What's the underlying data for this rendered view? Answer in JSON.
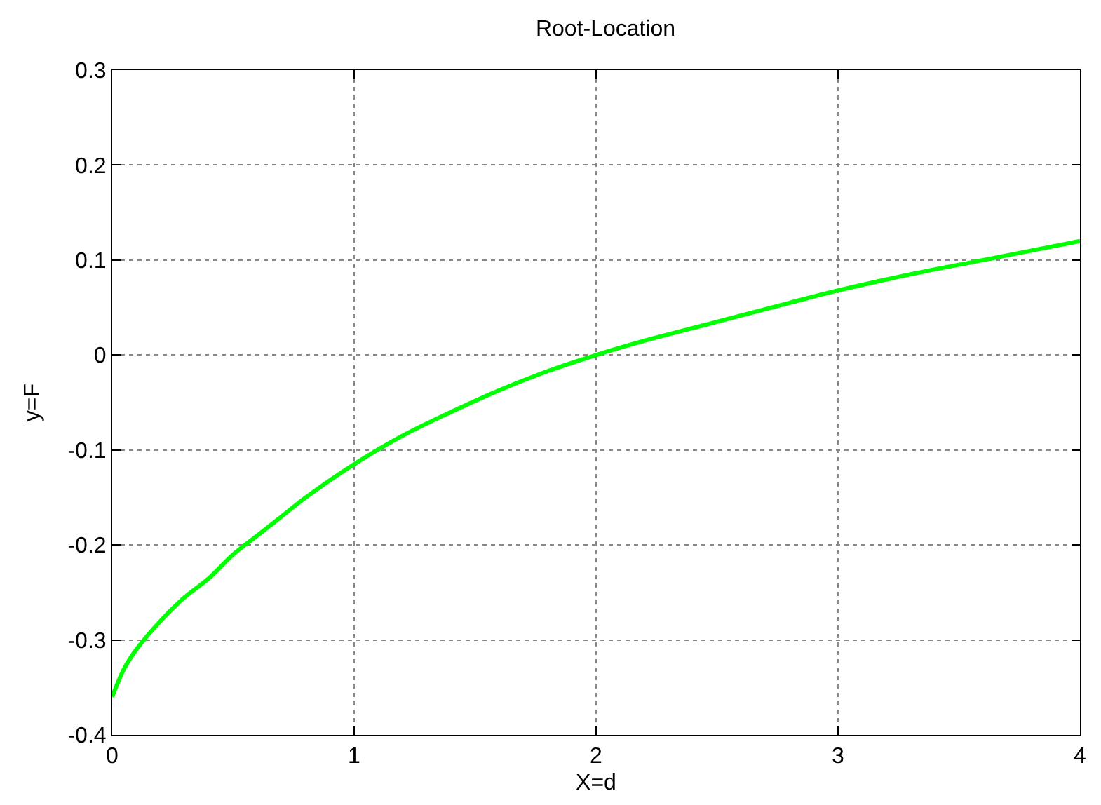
{
  "chart_data": {
    "type": "line",
    "title": "Root-Location",
    "xlabel": "X=d",
    "ylabel": "y=F",
    "xlim": [
      0,
      4
    ],
    "xticks": [
      0,
      1,
      2,
      3,
      4
    ],
    "ylim": [
      -0.4,
      0.3
    ],
    "yticks": [
      -0.4,
      -0.3,
      -0.2,
      -0.1,
      0,
      0.1,
      0.2,
      0.3
    ],
    "grid": true,
    "line_style": "solid",
    "series": [
      {
        "color": "#00ff00",
        "x": [
          0,
          0.05,
          0.1,
          0.2,
          0.3,
          0.4,
          0.5,
          0.6,
          0.7,
          0.8,
          1,
          1.2,
          1.4,
          1.6,
          1.8,
          2,
          2.2,
          2.5,
          2.8,
          3,
          3.3,
          3.6,
          4
        ],
        "values": [
          -0.36,
          -0.33,
          -0.31,
          -0.28,
          -0.255,
          -0.235,
          -0.21,
          -0.19,
          -0.17,
          -0.15,
          -0.115,
          -0.085,
          -0.06,
          -0.037,
          -0.017,
          0,
          0.015,
          0.035,
          0.055,
          0.068,
          0.085,
          0.1,
          0.12
        ]
      }
    ]
  }
}
